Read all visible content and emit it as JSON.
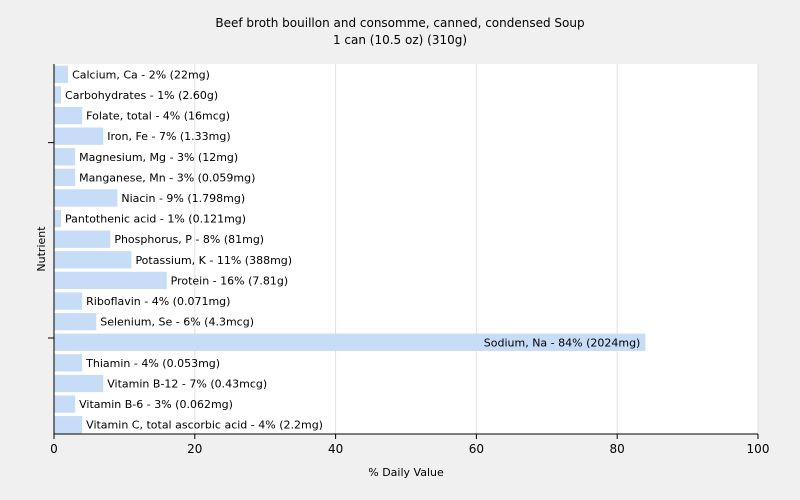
{
  "chart_data": {
    "type": "bar",
    "orientation": "horizontal",
    "title": "Beef broth bouillon and consomme, canned, condensed Soup",
    "subtitle": "1 can (10.5 oz) (310g)",
    "xlabel": "% Daily Value",
    "ylabel": "Nutrient",
    "xlim": [
      0,
      100
    ],
    "xticks": [
      0,
      20,
      40,
      60,
      80,
      100
    ],
    "grid": true,
    "bar_color": "#c6dcf7",
    "categories": [
      "Calcium, Ca",
      "Carbohydrates",
      "Folate, total",
      "Iron, Fe",
      "Magnesium, Mg",
      "Manganese, Mn",
      "Niacin",
      "Pantothenic acid",
      "Phosphorus, P",
      "Potassium, K",
      "Protein",
      "Riboflavin",
      "Selenium, Se",
      "Sodium, Na",
      "Thiamin",
      "Vitamin B-12",
      "Vitamin B-6",
      "Vitamin C, total ascorbic acid"
    ],
    "values": [
      2,
      1,
      4,
      7,
      3,
      3,
      9,
      1,
      8,
      11,
      16,
      4,
      6,
      84,
      4,
      7,
      3,
      4
    ],
    "labels": [
      "Calcium, Ca - 2% (22mg)",
      "Carbohydrates - 1% (2.60g)",
      "Folate, total - 4% (16mcg)",
      "Iron, Fe - 7% (1.33mg)",
      "Magnesium, Mg - 3% (12mg)",
      "Manganese, Mn - 3% (0.059mg)",
      "Niacin - 9% (1.798mg)",
      "Pantothenic acid - 1% (0.121mg)",
      "Phosphorus, P - 8% (81mg)",
      "Potassium, K - 11% (388mg)",
      "Protein - 16% (7.81g)",
      "Riboflavin - 4% (0.071mg)",
      "Selenium, Se - 6% (4.3mcg)",
      "Sodium, Na - 84% (2024mg)",
      "Thiamin - 4% (0.053mg)",
      "Vitamin B-12 - 7% (0.43mcg)",
      "Vitamin B-6 - 3% (0.062mg)",
      "Vitamin C, total ascorbic acid - 4% (2.2mg)"
    ]
  }
}
